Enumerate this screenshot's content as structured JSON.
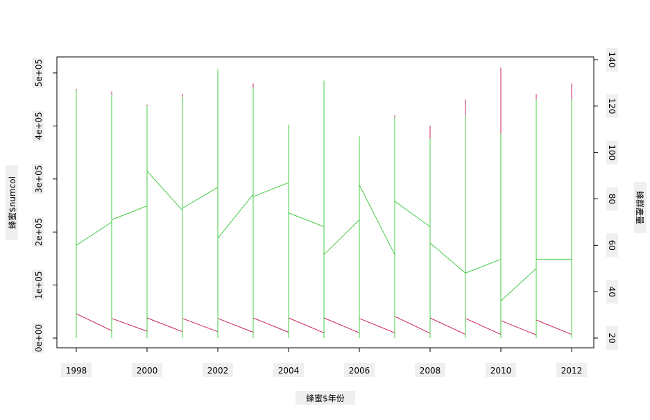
{
  "chart_data": {
    "type": "line",
    "xlabel": "蜂蜜$年份",
    "ylabel_left": "蜂蜜$numcol",
    "ylabel_right": "蜂群產量",
    "x_ticks": [
      "1998",
      "2000",
      "2002",
      "2004",
      "2006",
      "2008",
      "2010",
      "2012"
    ],
    "y_left_ticks": [
      "0e+00",
      "1e+05",
      "2e+05",
      "3e+05",
      "4e+05",
      "5e+05"
    ],
    "y_right_ticks": [
      "20",
      "40",
      "60",
      "80",
      "100",
      "120",
      "140"
    ],
    "xlim": [
      1998,
      2012
    ],
    "ylim_left": [
      0,
      510000
    ],
    "ylim_right": [
      20,
      140
    ],
    "grid": false,
    "legend": "none",
    "series": [
      {
        "color": "#cc2255",
        "axis": "left",
        "segments": [
          {
            "x": 1998,
            "max": 470000,
            "start": 46000,
            "end": 14000
          },
          {
            "x": 1999,
            "max": 465000,
            "start": 37000,
            "end": 13000
          },
          {
            "x": 2000,
            "max": 440000,
            "start": 38000,
            "end": 12000
          },
          {
            "x": 2001,
            "max": 460000,
            "start": 37000,
            "end": 12000
          },
          {
            "x": 2002,
            "max": 505000,
            "start": 37000,
            "end": 11000
          },
          {
            "x": 2003,
            "max": 480000,
            "start": 38000,
            "end": 11000
          },
          {
            "x": 2004,
            "max": 390000,
            "start": 38000,
            "end": 10000
          },
          {
            "x": 2005,
            "max": 440000,
            "start": 38000,
            "end": 10000
          },
          {
            "x": 2006,
            "max": 380000,
            "start": 37000,
            "end": 10000
          },
          {
            "x": 2007,
            "max": 420000,
            "start": 41000,
            "end": 9000
          },
          {
            "x": 2008,
            "max": 400000,
            "start": 38000,
            "end": 7000
          },
          {
            "x": 2009,
            "max": 450000,
            "start": 37000,
            "end": 7000
          },
          {
            "x": 2010,
            "max": 510000,
            "start": 33000,
            "end": 6000
          },
          {
            "x": 2011,
            "max": 460000,
            "start": 34000,
            "end": 7000
          },
          {
            "x": 2012,
            "max": 480000,
            "start": 38000,
            "end": 7000
          }
        ]
      },
      {
        "color": "#44cc44",
        "axis": "right",
        "segments": [
          {
            "x": 1998,
            "max": 127,
            "start": 60,
            "end": 70
          },
          {
            "x": 1999,
            "max": 125,
            "start": 71,
            "end": 77
          },
          {
            "x": 2000,
            "max": 120,
            "start": 92,
            "end": 75
          },
          {
            "x": 2001,
            "max": 124,
            "start": 76,
            "end": 85
          },
          {
            "x": 2002,
            "max": 136,
            "start": 63,
            "end": 82
          },
          {
            "x": 2003,
            "max": 128,
            "start": 81,
            "end": 87
          },
          {
            "x": 2004,
            "max": 112,
            "start": 74,
            "end": 68
          },
          {
            "x": 2005,
            "max": 131,
            "start": 56,
            "end": 71
          },
          {
            "x": 2006,
            "max": 107,
            "start": 86,
            "end": 56
          },
          {
            "x": 2007,
            "max": 115,
            "start": 79,
            "end": 68
          },
          {
            "x": 2008,
            "max": 106,
            "start": 61,
            "end": 48
          },
          {
            "x": 2009,
            "max": 116,
            "start": 48,
            "end": 54
          },
          {
            "x": 2010,
            "max": 108,
            "start": 36,
            "end": 50
          },
          {
            "x": 2011,
            "max": 123,
            "start": 54,
            "end": 54
          },
          {
            "x": 2012,
            "max": 123,
            "start": 54,
            "end": 54
          }
        ]
      }
    ]
  }
}
